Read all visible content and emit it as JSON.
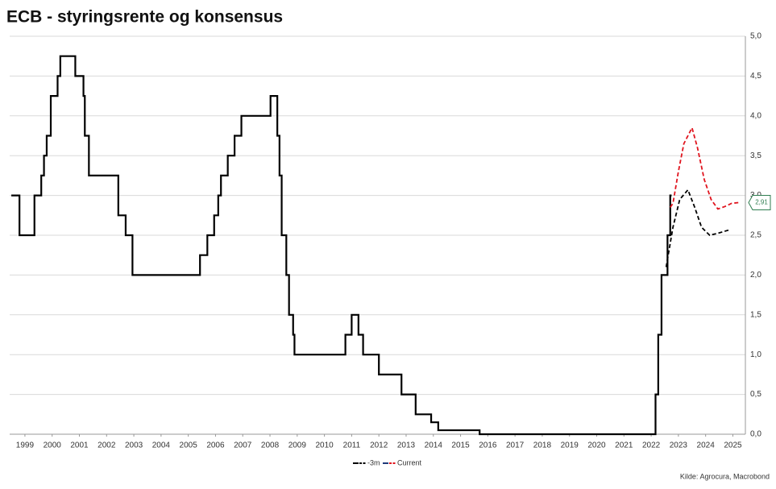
{
  "chart_data": {
    "type": "line",
    "title": "ECB - styringsrente og konsensus",
    "source": "Kilde: Agrocura, Macrobond",
    "step": true,
    "color": "#000000",
    "x": [
      1999.0,
      1999.3,
      1999.85,
      2000.1,
      2000.2,
      2000.3,
      2000.45,
      2000.7,
      2000.8,
      2001.35,
      2001.65,
      2001.7,
      2001.85,
      2002.93,
      2003.2,
      2003.45,
      2005.93,
      2006.2,
      2006.45,
      2006.6,
      2006.7,
      2006.95,
      2007.2,
      2007.45,
      2008.52,
      2008.77,
      2008.85,
      2008.93,
      2009.1,
      2009.2,
      2009.35,
      2009.4,
      2011.27,
      2011.5,
      2011.75,
      2011.92,
      2012.5,
      2013.33,
      2013.85,
      2014.42,
      2014.68,
      2016.2,
      2022.66,
      2022.76,
      2022.88,
      2023.1,
      2023.2,
      2023.25
    ],
    "values": [
      3.0,
      2.5,
      3.0,
      3.25,
      3.5,
      3.75,
      4.25,
      4.5,
      4.75,
      4.5,
      4.25,
      3.75,
      3.25,
      2.75,
      2.5,
      2.0,
      2.25,
      2.5,
      2.75,
      3.0,
      3.25,
      3.5,
      3.75,
      4.0,
      4.25,
      3.75,
      3.25,
      2.5,
      2.0,
      1.5,
      1.25,
      1.0,
      1.25,
      1.5,
      1.25,
      1.0,
      0.75,
      0.5,
      0.25,
      0.15,
      0.05,
      0.0,
      0.5,
      1.25,
      2.0,
      2.5,
      3.0,
      3.0
    ],
    "series": [
      {
        "name": "-3m",
        "color": "#000000",
        "line_color": "#000000",
        "x": [
          2023.05,
          2023.3,
          2023.55,
          2023.85,
          2024.1,
          2024.35,
          2024.65,
          2024.9,
          2025.2,
          2025.4
        ],
        "values": [
          2.1,
          2.6,
          2.95,
          3.07,
          2.85,
          2.6,
          2.5,
          2.52,
          2.55,
          2.57
        ]
      },
      {
        "name": "Current",
        "color": "#e0141e",
        "line_color": "#1f3a7a",
        "x": [
          2023.2,
          2023.3,
          2023.5,
          2023.7,
          2024.0,
          2024.2,
          2024.45,
          2024.7,
          2024.95,
          2025.2,
          2025.45,
          2025.7
        ],
        "values": [
          2.85,
          2.9,
          3.3,
          3.65,
          3.85,
          3.6,
          3.2,
          2.95,
          2.83,
          2.86,
          2.9,
          2.91
        ],
        "value_labels": [
          "",
          "",
          "",
          "",
          "",
          "",
          "",
          "",
          "",
          "",
          "",
          "2,91"
        ]
      }
    ],
    "xlim": [
      1998.94,
      2025.96
    ],
    "xticks": [
      {
        "value": 1999.5,
        "label": "1999"
      },
      {
        "value": 2000.5,
        "label": "2000"
      },
      {
        "value": 2001.5,
        "label": "2001"
      },
      {
        "value": 2002.5,
        "label": "2002"
      },
      {
        "value": 2003.5,
        "label": "2003"
      },
      {
        "value": 2004.5,
        "label": "2004"
      },
      {
        "value": 2005.5,
        "label": "2005"
      },
      {
        "value": 2006.5,
        "label": "2006"
      },
      {
        "value": 2007.5,
        "label": "2007"
      },
      {
        "value": 2008.5,
        "label": "2008"
      },
      {
        "value": 2009.5,
        "label": "2009"
      },
      {
        "value": 2010.5,
        "label": "2010"
      },
      {
        "value": 2011.5,
        "label": "2011"
      },
      {
        "value": 2012.5,
        "label": "2012"
      },
      {
        "value": 2013.5,
        "label": "2013"
      },
      {
        "value": 2014.5,
        "label": "2014"
      },
      {
        "value": 2015.5,
        "label": "2015"
      },
      {
        "value": 2016.5,
        "label": "2016"
      },
      {
        "value": 2017.5,
        "label": "2017"
      },
      {
        "value": 2018.5,
        "label": "2018"
      },
      {
        "value": 2019.5,
        "label": "2019"
      },
      {
        "value": 2020.5,
        "label": "2020"
      },
      {
        "value": 2021.5,
        "label": "2021"
      },
      {
        "value": 2022.5,
        "label": "2022"
      },
      {
        "value": 2023.5,
        "label": "2023"
      },
      {
        "value": 2024.5,
        "label": "2024"
      },
      {
        "value": 2025.5,
        "label": "2025"
      }
    ],
    "ylim": [
      0,
      5
    ],
    "yticks": [
      {
        "value": 0,
        "label": "0,0"
      },
      {
        "value": 0.5,
        "label": "0,5"
      },
      {
        "value": 1,
        "label": "1,0"
      },
      {
        "value": 1.5,
        "label": "1,5"
      },
      {
        "value": 2,
        "label": "2,0"
      },
      {
        "value": 2.5,
        "label": "2,5"
      },
      {
        "value": 3,
        "label": "3,0"
      },
      {
        "value": 3.5,
        "label": "3,5"
      },
      {
        "value": 4,
        "label": "4,0"
      },
      {
        "value": 4.5,
        "label": "4,5"
      },
      {
        "value": 5,
        "label": "5,0"
      }
    ],
    "grid": true
  }
}
